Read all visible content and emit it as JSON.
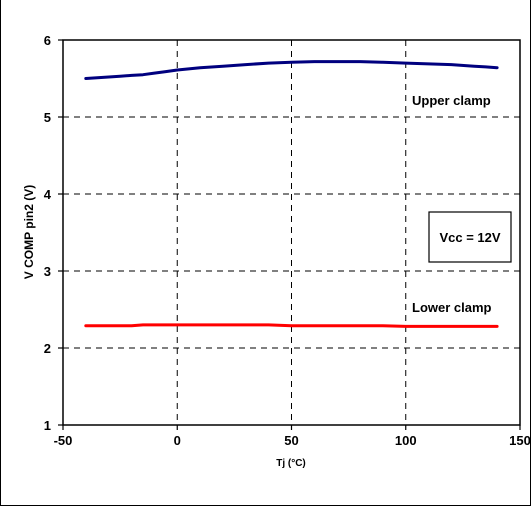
{
  "chart_data": {
    "type": "line",
    "title": "",
    "xlabel": "Tj (°C)",
    "ylabel": "V COMP pin2 (V)",
    "xlim": [
      -50,
      150
    ],
    "ylim": [
      1,
      6
    ],
    "xticks": [
      -50,
      0,
      50,
      100,
      150
    ],
    "yticks": [
      1,
      2,
      3,
      4,
      5,
      6
    ],
    "grid": true,
    "legend": "none",
    "series": [
      {
        "name": "Upper clamp",
        "color": "#00007f",
        "x": [
          -40,
          -35,
          -30,
          -25,
          -20,
          -15,
          -10,
          -5,
          0,
          10,
          20,
          30,
          40,
          50,
          60,
          70,
          80,
          90,
          100,
          110,
          120,
          130,
          135,
          140
        ],
        "y": [
          5.5,
          5.51,
          5.52,
          5.53,
          5.54,
          5.55,
          5.57,
          5.59,
          5.61,
          5.64,
          5.66,
          5.68,
          5.7,
          5.71,
          5.72,
          5.72,
          5.72,
          5.71,
          5.7,
          5.69,
          5.68,
          5.66,
          5.65,
          5.64
        ]
      },
      {
        "name": "Lower clamp",
        "color": "#ff0000",
        "x": [
          -40,
          -20,
          -15,
          0,
          20,
          40,
          50,
          70,
          90,
          100,
          120,
          140
        ],
        "y": [
          2.29,
          2.29,
          2.3,
          2.3,
          2.3,
          2.3,
          2.29,
          2.29,
          2.29,
          2.28,
          2.28,
          2.28
        ]
      }
    ],
    "annotations": [
      {
        "text": "Upper clamp"
      },
      {
        "text": "Lower clamp"
      },
      {
        "text": "Vcc = 12V",
        "boxed": true
      }
    ]
  }
}
